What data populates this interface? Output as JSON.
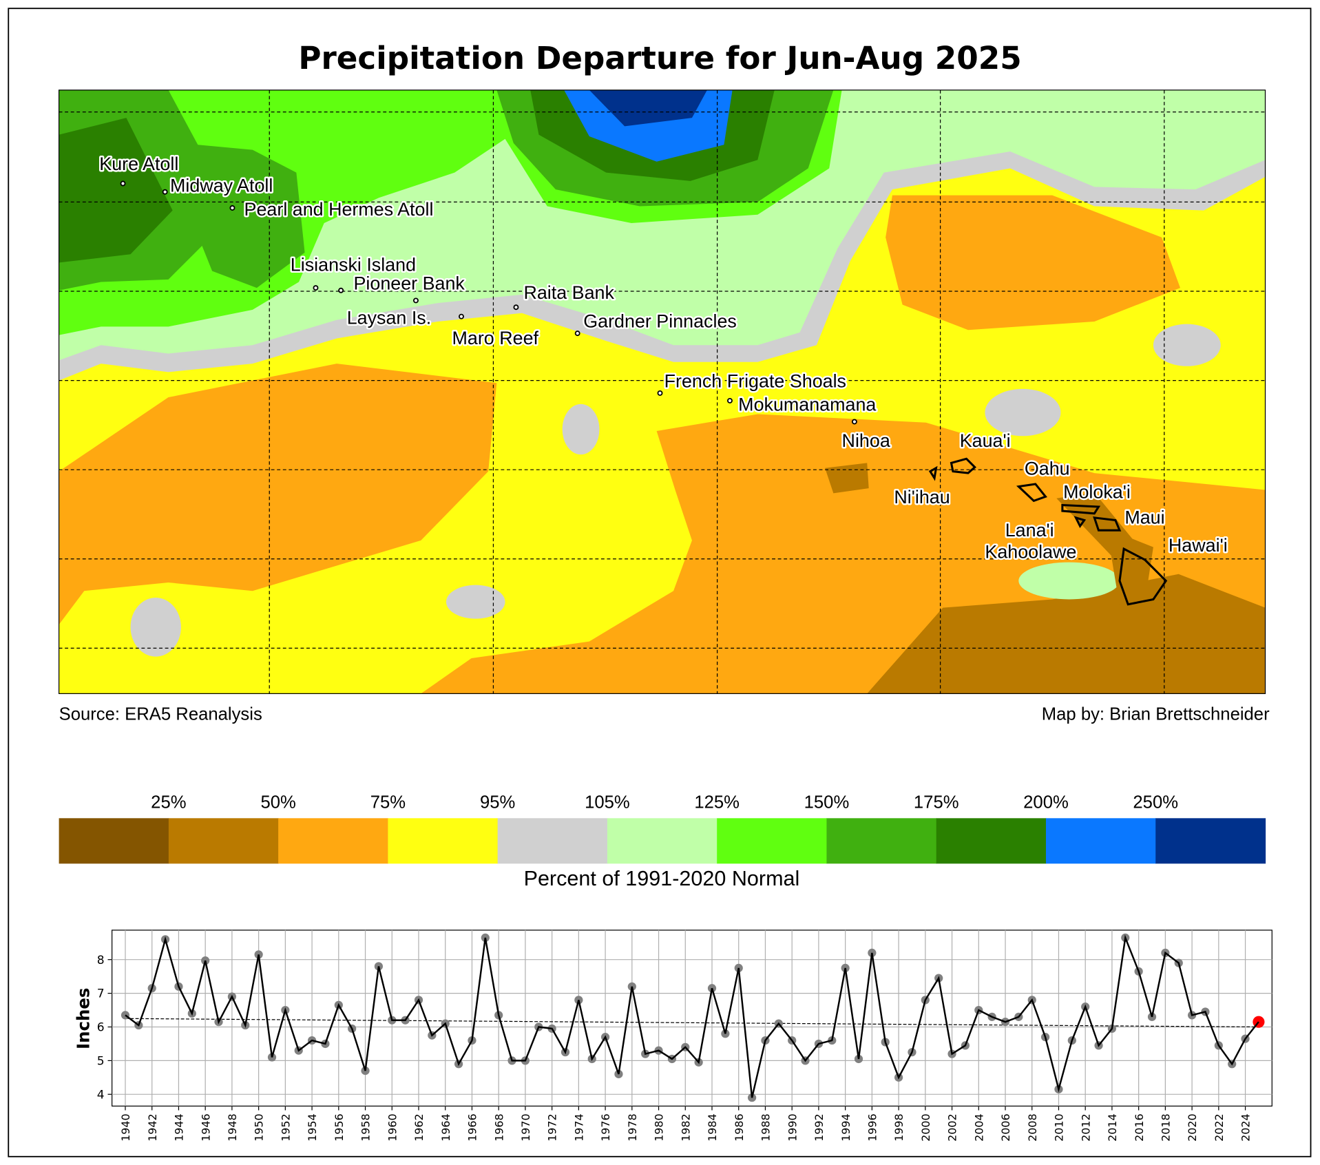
{
  "title": "Precipitation Departure for Jun-Aug 2025",
  "source": "Source: ERA5 Reanalysis",
  "credit": "Map by: Brian Brettschneider",
  "map": {
    "locations": [
      "Kure Atoll",
      "Midway Atoll",
      "Pearl and Hermes Atoll",
      "Lisianski Island",
      "Pioneer Bank",
      "Raita Bank",
      "Laysan Is.",
      "Maro Reef",
      "Gardner Pinnacles",
      "French Frigate Shoals",
      "Mokumanamana",
      "Nihoa",
      "Kaua'i",
      "Ni'ihau",
      "Oahu",
      "Moloka'i",
      "Maui",
      "Lana'i",
      "Kahoolawe",
      "Hawai'i"
    ]
  },
  "colorbar": {
    "colors": [
      "#845500",
      "#ba7a00",
      "#ffa811",
      "#ffff11",
      "#d0d0d0",
      "#c0ffa8",
      "#60ff10",
      "#40b010",
      "#2a8000",
      "#0a78ff",
      "#00318c"
    ],
    "labels": [
      "25%",
      "50%",
      "75%",
      "95%",
      "105%",
      "125%",
      "150%",
      "175%",
      "200%",
      "250%"
    ],
    "label": "Percent of 1991-2020 Normal"
  },
  "chart_data": {
    "type": "line",
    "ylabel": "Inches",
    "x": [
      1940,
      1941,
      1942,
      1943,
      1944,
      1945,
      1946,
      1947,
      1948,
      1949,
      1950,
      1951,
      1952,
      1953,
      1954,
      1955,
      1956,
      1957,
      1958,
      1959,
      1960,
      1961,
      1962,
      1963,
      1964,
      1965,
      1966,
      1967,
      1968,
      1969,
      1970,
      1971,
      1972,
      1973,
      1974,
      1975,
      1976,
      1977,
      1978,
      1979,
      1980,
      1981,
      1982,
      1983,
      1984,
      1985,
      1986,
      1987,
      1988,
      1989,
      1990,
      1991,
      1992,
      1993,
      1994,
      1995,
      1996,
      1997,
      1998,
      1999,
      2000,
      2001,
      2002,
      2003,
      2004,
      2005,
      2006,
      2007,
      2008,
      2009,
      2010,
      2011,
      2012,
      2013,
      2014,
      2015,
      2016,
      2017,
      2018,
      2019,
      2020,
      2021,
      2022,
      2023,
      2024,
      2025
    ],
    "series": [
      {
        "color": "#000000",
        "marker_color": "#808080",
        "values": [
          6.35,
          6.05,
          7.15,
          8.6,
          7.2,
          6.4,
          7.97,
          6.15,
          6.9,
          6.05,
          8.15,
          5.1,
          6.5,
          5.3,
          5.6,
          5.5,
          6.65,
          5.95,
          4.7,
          7.8,
          6.2,
          6.2,
          6.8,
          5.75,
          6.1,
          4.9,
          5.6,
          8.65,
          6.35,
          5.0,
          5.0,
          6.0,
          5.95,
          5.25,
          6.8,
          5.05,
          5.7,
          4.6,
          7.2,
          5.2,
          5.3,
          5.05,
          5.4,
          4.95,
          7.15,
          5.8,
          7.75,
          3.9,
          5.6,
          6.1,
          5.6,
          5.0,
          5.5,
          5.6,
          7.75,
          5.05,
          8.2,
          5.55,
          4.5,
          5.25,
          6.8,
          7.45,
          5.2,
          5.45,
          6.5,
          6.3,
          6.15,
          6.3,
          6.8,
          5.7,
          4.15,
          5.6,
          6.6,
          5.45,
          5.95,
          8.65,
          7.65,
          6.3,
          8.2,
          7.9,
          6.35,
          6.45,
          5.45,
          4.9,
          5.65,
          6.15
        ]
      }
    ],
    "trend": {
      "values": [
        6.25,
        6.0
      ],
      "color": "#000000"
    },
    "highlight_color": "#ff0000",
    "xlim": [
      1939,
      2026
    ],
    "ylim": [
      3.65,
      8.875
    ],
    "xticks": [
      1940,
      1942,
      1944,
      1946,
      1948,
      1950,
      1952,
      1954,
      1956,
      1958,
      1960,
      1962,
      1964,
      1966,
      1968,
      1970,
      1972,
      1974,
      1976,
      1978,
      1980,
      1982,
      1984,
      1986,
      1988,
      1990,
      1992,
      1994,
      1996,
      1998,
      2000,
      2002,
      2004,
      2006,
      2008,
      2010,
      2012,
      2014,
      2016,
      2018,
      2020,
      2022,
      2024
    ],
    "yticks": [
      4,
      5,
      6,
      7,
      8
    ],
    "grid": true
  }
}
